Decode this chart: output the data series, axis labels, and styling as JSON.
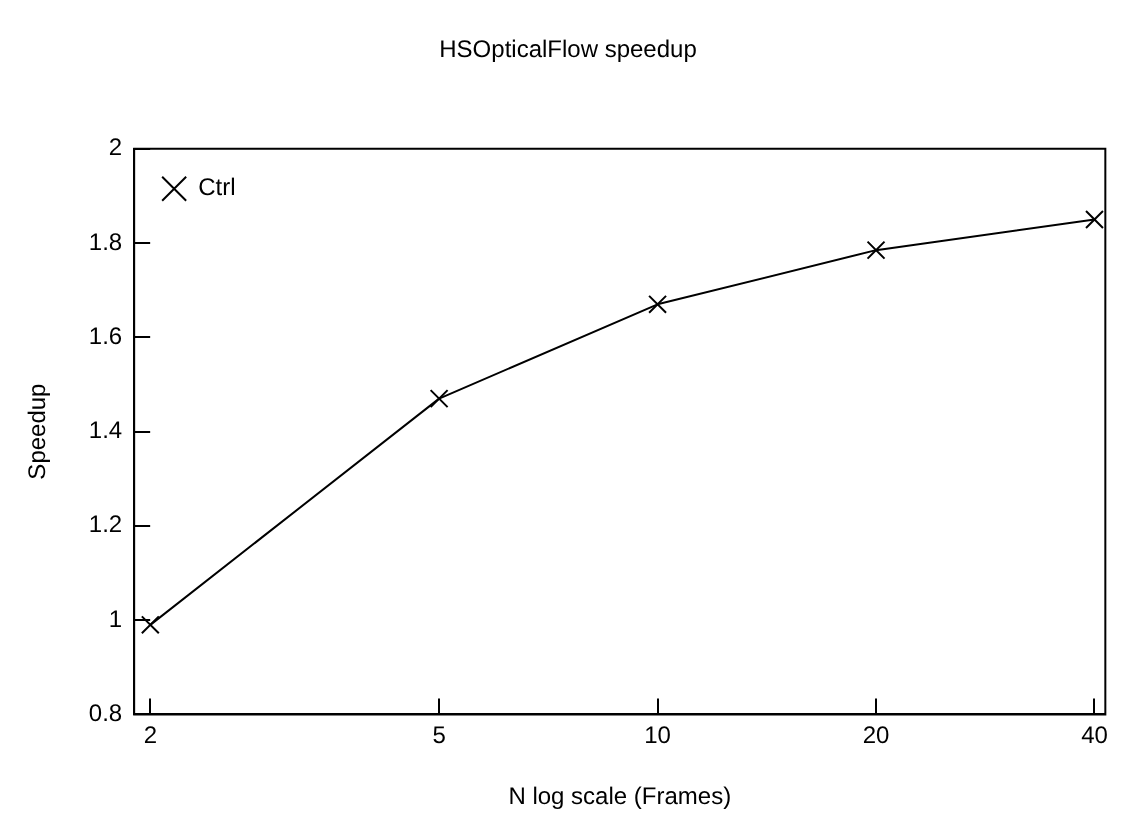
{
  "chart_data": {
    "type": "line",
    "title": "HSOpticalFlow speedup",
    "xlabel": "N log scale (Frames)",
    "ylabel": "Speedup",
    "x": [
      2,
      5,
      10,
      20,
      40
    ],
    "series": [
      {
        "name": "Ctrl",
        "color": "#000000",
        "values": [
          0.99,
          1.47,
          1.67,
          1.785,
          1.85
        ]
      }
    ],
    "log": "x",
    "xlim": [
      1.9,
      41.4
    ],
    "xticks": [
      2,
      5,
      10,
      20,
      40
    ],
    "ylim": [
      0.8,
      2
    ],
    "yticks": [
      0.8,
      1,
      1.2,
      1.4,
      1.6,
      1.8,
      2
    ],
    "grid": false,
    "legend": "top left",
    "marker": "cross",
    "line_style": "solid"
  }
}
